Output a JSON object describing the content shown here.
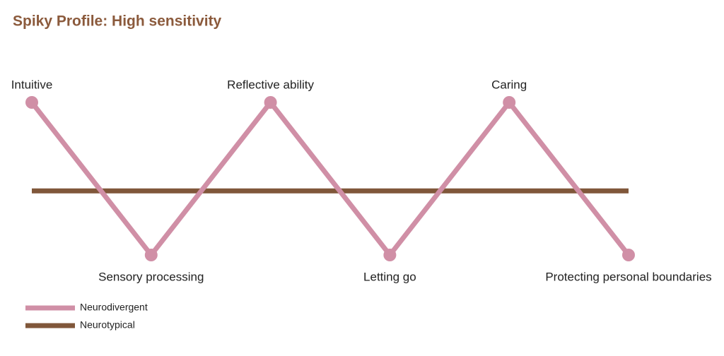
{
  "chart_data": {
    "type": "line",
    "title": "Spiky Profile: High sensitivity",
    "categories": [
      "Intuitive",
      "Sensory processing",
      "Reflective ability",
      "Letting go",
      "Caring",
      "Protecting personal boundaries"
    ],
    "series": [
      {
        "name": "Neurodivergent",
        "color": "#d08fa6",
        "values": [
          1,
          -1,
          1,
          -1,
          1,
          -1
        ]
      },
      {
        "name": "Neurotypical",
        "color": "#80573a",
        "values": [
          -0.16,
          -0.16,
          -0.16,
          -0.16,
          -0.16,
          -0.16
        ]
      }
    ],
    "ylim": [
      -1,
      1
    ],
    "grid": false
  }
}
